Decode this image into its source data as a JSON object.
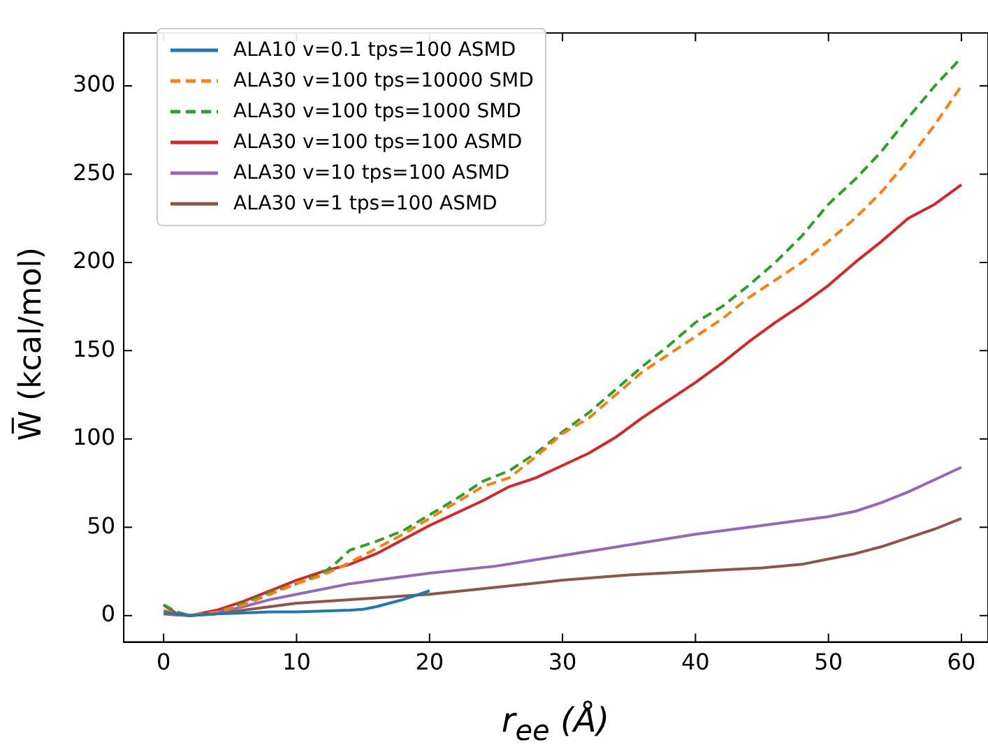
{
  "chart_data": {
    "type": "line",
    "xlabel": "r$_{ee}$ (Å)",
    "ylabel": "W̅ (kcal/mol)",
    "xlim": [
      -3,
      62
    ],
    "ylim": [
      -15,
      330
    ],
    "xticks": [
      0,
      10,
      20,
      30,
      40,
      50,
      60
    ],
    "yticks": [
      0,
      50,
      100,
      150,
      200,
      250,
      300
    ],
    "grid": false,
    "legend": "top left",
    "series": [
      {
        "name": "ALA10 v=0.1 tps=100 ASMD",
        "color": "#1f77b4",
        "line_style": "solid",
        "x": [
          0,
          1,
          2,
          4,
          6,
          8,
          10,
          12,
          14,
          15,
          16,
          17,
          18,
          19,
          20
        ],
        "values": [
          2,
          1,
          0,
          1,
          1.5,
          2,
          2,
          2.5,
          3,
          3.5,
          5,
          7,
          9,
          11.5,
          14
        ]
      },
      {
        "name": "ALA30 v=100 tps=10000 SMD",
        "color": "#ff7f0e",
        "line_style": "dashed",
        "x": [
          0,
          1,
          2,
          4,
          6,
          8,
          10,
          12,
          14,
          16,
          18,
          20,
          22,
          24,
          26,
          28,
          30,
          32,
          34,
          36,
          38,
          40,
          42,
          44,
          46,
          48,
          50,
          52,
          54,
          56,
          58,
          60
        ],
        "values": [
          3,
          1,
          0,
          2,
          6,
          12,
          18,
          23,
          30,
          38,
          46,
          55,
          64,
          73,
          78,
          90,
          103,
          112,
          125,
          138,
          148,
          158,
          168,
          180,
          190,
          200,
          212,
          225,
          240,
          258,
          278,
          300
        ]
      },
      {
        "name": "ALA30 v=100 tps=1000 SMD",
        "color": "#2ca02c",
        "line_style": "dashed",
        "x": [
          0,
          1,
          2,
          4,
          6,
          8,
          10,
          12,
          13,
          14,
          16,
          18,
          20,
          22,
          24,
          26,
          28,
          30,
          32,
          34,
          36,
          38,
          40,
          42,
          44,
          46,
          48,
          50,
          52,
          54,
          56,
          58,
          60
        ],
        "values": [
          6,
          2,
          0,
          2,
          7,
          13,
          18,
          24,
          30,
          37,
          42,
          48,
          57,
          66,
          76,
          82,
          92,
          104,
          115,
          128,
          141,
          153,
          166,
          175,
          187,
          200,
          215,
          233,
          247,
          263,
          282,
          300,
          316
        ]
      },
      {
        "name": "ALA30 v=100 tps=100 ASMD",
        "color": "#d62728",
        "line_style": "solid",
        "x": [
          0,
          1,
          2,
          4,
          6,
          8,
          10,
          12,
          14,
          16,
          18,
          20,
          22,
          24,
          26,
          28,
          30,
          32,
          34,
          36,
          38,
          40,
          42,
          44,
          46,
          48,
          50,
          52,
          54,
          56,
          58,
          60
        ],
        "values": [
          6,
          1,
          0,
          3,
          8,
          14,
          20,
          25,
          29,
          35,
          43,
          51,
          58,
          65,
          73,
          78,
          85,
          92,
          101,
          112,
          122,
          132,
          143,
          155,
          166,
          176,
          187,
          200,
          212,
          225,
          233,
          244
        ]
      },
      {
        "name": "ALA30 v=10 tps=100 ASMD",
        "color": "#9467bd",
        "line_style": "solid",
        "x": [
          0,
          1,
          2,
          4,
          6,
          8,
          10,
          12,
          14,
          16,
          18,
          20,
          25,
          30,
          35,
          40,
          45,
          50,
          52,
          54,
          56,
          58,
          60
        ],
        "values": [
          2,
          0.5,
          0,
          1.5,
          5,
          9,
          12,
          15,
          18,
          20,
          22,
          24,
          28,
          34,
          40,
          46,
          51,
          56,
          59,
          64,
          70,
          77,
          84
        ]
      },
      {
        "name": "ALA30 v=1 tps=100 ASMD",
        "color": "#8c564b",
        "line_style": "solid",
        "x": [
          0,
          1,
          2,
          4,
          6,
          8,
          10,
          12,
          14,
          16,
          18,
          20,
          25,
          30,
          35,
          40,
          45,
          48,
          50,
          52,
          54,
          56,
          58,
          60
        ],
        "values": [
          1,
          0.3,
          0,
          1,
          3,
          5,
          7,
          8,
          9,
          10,
          11,
          12,
          16,
          20,
          23,
          25,
          27,
          29,
          32,
          35,
          39,
          44,
          49,
          55
        ]
      }
    ]
  }
}
